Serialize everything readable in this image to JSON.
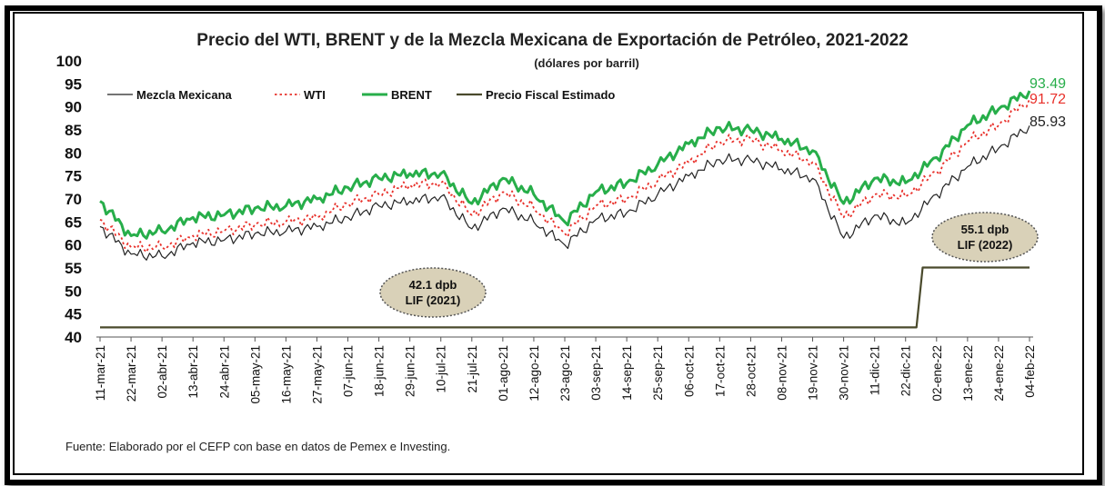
{
  "title": "Precio del WTI, BRENT y de la Mezcla Mexicana de Exportación de Petróleo, 2021-2022",
  "subtitle": "(dólares por barril)",
  "source": "Fuente: Elaborado por el CEFP con base en datos de Pemex e Investing.",
  "colors": {
    "mezcla": "#222222",
    "wti": "#e8302a",
    "brent": "#27ae4a",
    "fiscal": "#4a4a2c",
    "annotation_fill": "#d9d1b8"
  },
  "chart_data": {
    "type": "line",
    "ylim": [
      40,
      100
    ],
    "yticks": [
      40,
      45,
      50,
      55,
      60,
      65,
      70,
      75,
      80,
      85,
      90,
      95,
      100
    ],
    "legend_position": "top-left",
    "x": [
      "11-mar-21",
      "22-mar-21",
      "02-abr-21",
      "13-abr-21",
      "24-abr-21",
      "05-may-21",
      "16-may-21",
      "27-may-21",
      "07-jun-21",
      "18-jun-21",
      "29-jun-21",
      "10-jul-21",
      "21-jul-21",
      "01-ago-21",
      "12-ago-21",
      "23-ago-21",
      "03-sep-21",
      "14-sep-21",
      "25-sep-21",
      "06-oct-21",
      "17-oct-21",
      "28-oct-21",
      "08-nov-21",
      "19-nov-21",
      "30-nov-21",
      "11-dic-21",
      "22-dic-21",
      "02-ene-22",
      "13-ene-22",
      "24-ene-22",
      "04-feb-22"
    ],
    "series": [
      {
        "name": "Mezcla Mexicana",
        "key": "mezcla",
        "values": [
          64,
          58,
          57.5,
          60.5,
          61,
          62.5,
          63,
          64,
          66,
          68.5,
          69.5,
          70.5,
          63.5,
          68,
          65,
          60,
          65.5,
          67,
          71,
          75,
          78.5,
          78.5,
          76.5,
          74.5,
          61.5,
          66.5,
          64.5,
          71,
          77,
          81,
          85.93
        ],
        "end_label": "85.93"
      },
      {
        "name": "WTI",
        "key": "wti",
        "values": [
          65.5,
          59.5,
          59.5,
          62,
          63,
          64.5,
          65,
          66,
          69,
          71,
          73,
          73.5,
          66.5,
          71.5,
          68,
          62.5,
          68.5,
          70,
          74,
          78,
          82.5,
          83,
          80.5,
          78,
          66,
          71,
          70.5,
          76,
          82.5,
          86,
          91.72
        ],
        "end_label": "91.72"
      },
      {
        "name": "BRENT",
        "key": "brent",
        "values": [
          69.5,
          62,
          63,
          66,
          66.5,
          68,
          68.5,
          70,
          72.5,
          74.5,
          75.5,
          75.5,
          69,
          74.5,
          71,
          65,
          71.5,
          73.5,
          77.5,
          82,
          85.5,
          85,
          83,
          80.5,
          69,
          74.5,
          73.5,
          79,
          86,
          89.5,
          93.49
        ],
        "end_label": "93.49"
      },
      {
        "name": "Precio Fiscal Estimado",
        "key": "fiscal",
        "values": [
          42.1,
          42.1,
          42.1,
          42.1,
          42.1,
          42.1,
          42.1,
          42.1,
          42.1,
          42.1,
          42.1,
          42.1,
          42.1,
          42.1,
          42.1,
          42.1,
          42.1,
          42.1,
          42.1,
          42.1,
          42.1,
          42.1,
          42.1,
          42.1,
          42.1,
          42.1,
          42.1,
          55.1,
          55.1,
          55.1,
          55.1
        ]
      }
    ],
    "annotations": [
      {
        "line1": "42.1 dpb",
        "line2": "LIF (2021)"
      },
      {
        "line1": "55.1 dpb",
        "line2": "LIF (2022)"
      }
    ]
  }
}
